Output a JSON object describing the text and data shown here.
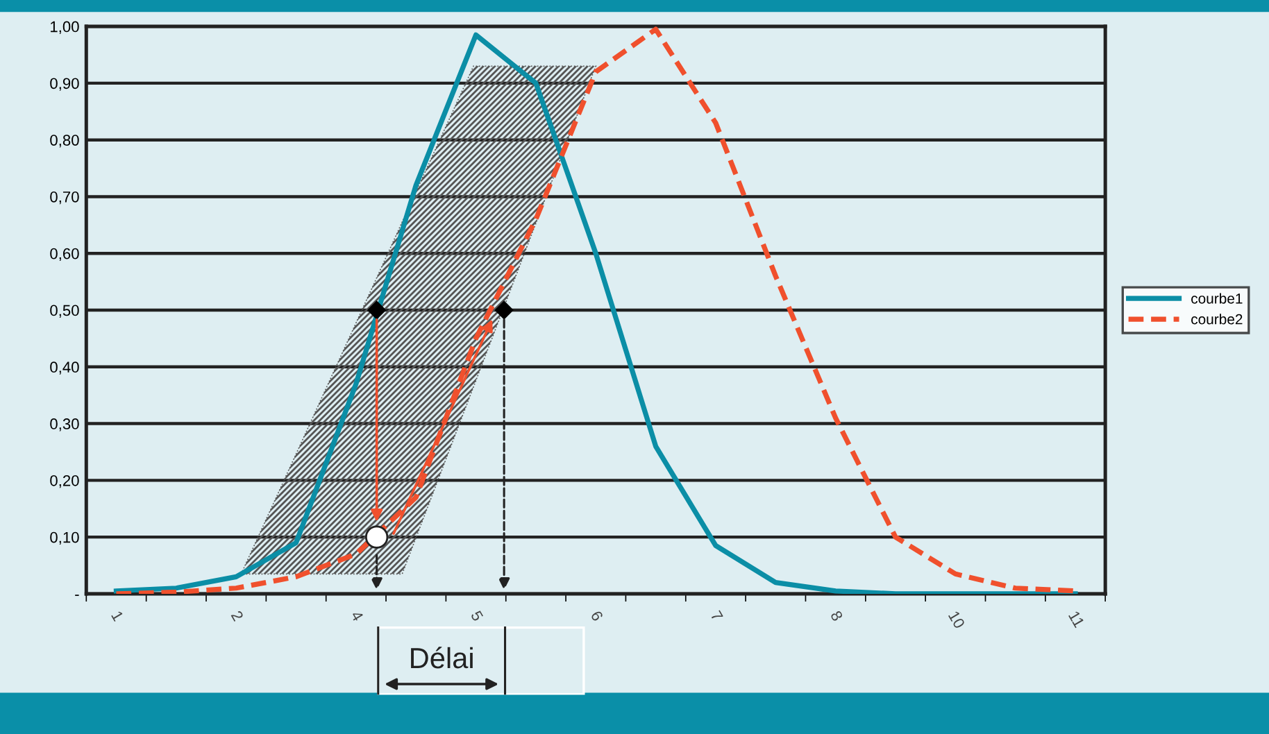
{
  "chart_data": {
    "type": "line",
    "categories": [
      "1",
      null,
      "2",
      null,
      "4",
      null,
      "5",
      null,
      "6",
      null,
      "7",
      null,
      "8",
      null,
      "10",
      null,
      "11"
    ],
    "series": [
      {
        "name": "courbe1",
        "color": "#0b8ea6",
        "line_style": "solid",
        "values": [
          0.005,
          0.01,
          0.03,
          0.09,
          0.37,
          0.72,
          0.985,
          0.9,
          0.6,
          0.26,
          0.085,
          0.02,
          0.005,
          0,
          0,
          0,
          0
        ]
      },
      {
        "name": "courbe2",
        "color": "#f0502d",
        "line_style": "dashed",
        "values": [
          0,
          0.003,
          0.01,
          0.03,
          0.07,
          0.17,
          0.45,
          0.66,
          0.92,
          0.995,
          0.83,
          0.56,
          0.31,
          0.1,
          0.035,
          0.01,
          0.005
        ]
      }
    ],
    "ylim": [
      0,
      1
    ],
    "yticks": [
      {
        "value": 0,
        "label": "-"
      },
      {
        "value": 0.1,
        "label": "0,10"
      },
      {
        "value": 0.2,
        "label": "0,20"
      },
      {
        "value": 0.3,
        "label": "0,30"
      },
      {
        "value": 0.4,
        "label": "0,40"
      },
      {
        "value": 0.5,
        "label": "0,50"
      },
      {
        "value": 0.6,
        "label": "0,60"
      },
      {
        "value": 0.7,
        "label": "0,70"
      },
      {
        "value": 0.8,
        "label": "0,80"
      },
      {
        "value": 0.9,
        "label": "0,90"
      },
      {
        "value": 1,
        "label": "1,00"
      }
    ],
    "grid": "y",
    "legend": "right",
    "annotations": [
      "Délai"
    ]
  }
}
